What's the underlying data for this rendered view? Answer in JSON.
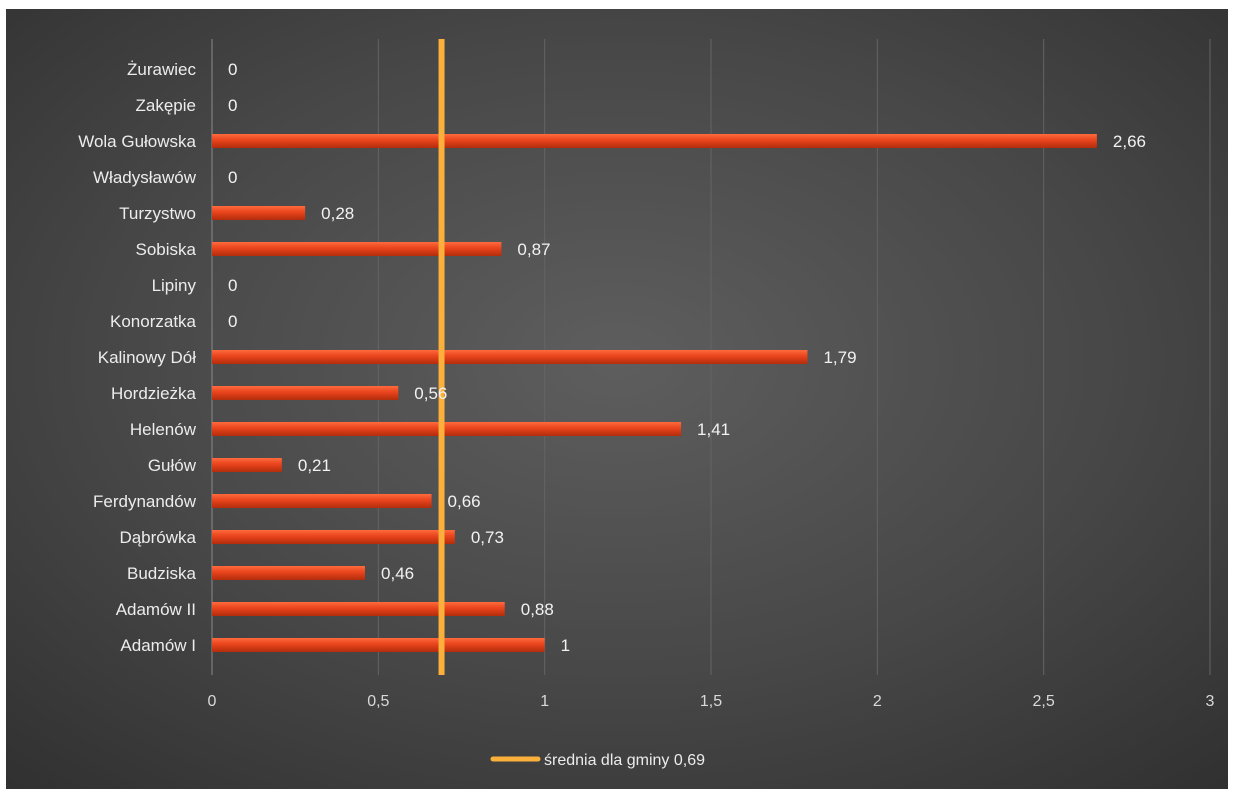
{
  "chart_data": {
    "type": "bar",
    "orientation": "horizontal",
    "categories": [
      "Żurawiec",
      "Zakępie",
      "Wola Gułowska",
      "Władysławów",
      "Turzystwo",
      "Sobiska",
      "Lipiny",
      "Konorzatka",
      "Kalinowy Dół",
      "Hordzieżka",
      "Helenów",
      "Gułów",
      "Ferdynandów",
      "Dąbrówka",
      "Budziska",
      "Adamów II",
      "Adamów I"
    ],
    "values": [
      0,
      0,
      2.66,
      0,
      0.28,
      0.87,
      0,
      0,
      1.79,
      0.56,
      1.41,
      0.21,
      0.66,
      0.73,
      0.46,
      0.88,
      1
    ],
    "value_labels": [
      "0",
      "0",
      "2,66",
      "0",
      "0,28",
      "0,87",
      "0",
      "0",
      "1,79",
      "0,56",
      "1,41",
      "0,21",
      "0,66",
      "0,73",
      "0,46",
      "0,88",
      "1"
    ],
    "xlim": [
      0,
      3
    ],
    "x_ticks": [
      0,
      0.5,
      1,
      1.5,
      2,
      2.5,
      3
    ],
    "x_tick_labels": [
      "0",
      "0,5",
      "1",
      "1,5",
      "2",
      "2,5",
      "3"
    ],
    "grid": "vertical",
    "bar_color": "#e8431c",
    "reference_line": {
      "value": 0.69,
      "label": "średnia dla gminy 0,69",
      "color": "#fbb03b"
    },
    "legend": {
      "placement": "bottom",
      "entries": [
        "średnia dla gminy 0,69"
      ]
    },
    "background_color": "#474747",
    "title": "",
    "xlabel": "",
    "ylabel": ""
  }
}
